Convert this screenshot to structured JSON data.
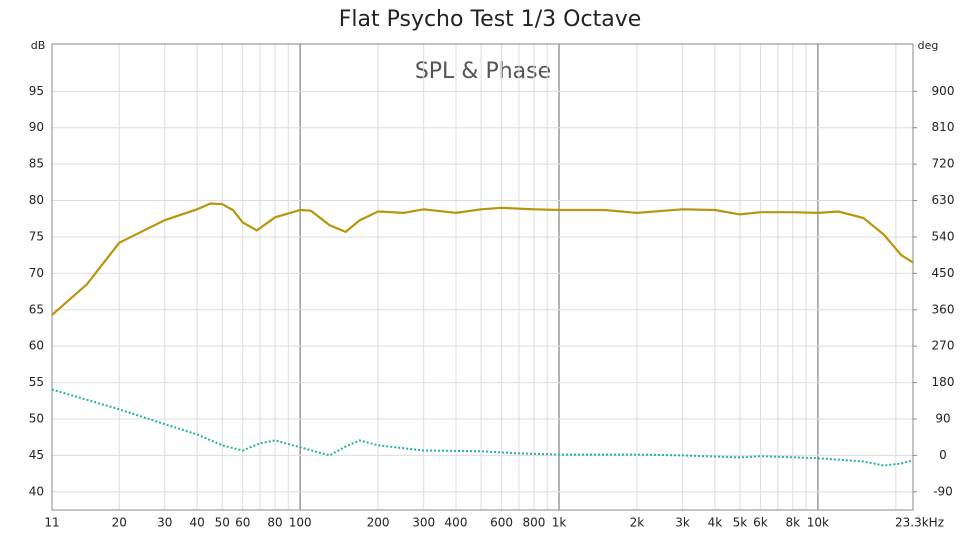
{
  "chart_data": {
    "type": "line",
    "title": "Flat Psycho Test 1/3 Octave",
    "subtitle": "SPL & Phase",
    "y_label": "dB",
    "y2_label": "deg",
    "xscale": "log",
    "grid": true,
    "xlim": [
      11,
      23300
    ],
    "ylim": [
      37.5,
      101.5
    ],
    "y2lim": [
      -135,
      1017
    ],
    "xticks": [
      11,
      20,
      30,
      40,
      50,
      60,
      80,
      100,
      200,
      300,
      400,
      600,
      800,
      {
        "value": 1000,
        "label": "1k"
      },
      {
        "value": 2000,
        "label": "2k"
      },
      {
        "value": 3000,
        "label": "3k"
      },
      {
        "value": 4000,
        "label": "4k"
      },
      {
        "value": 5000,
        "label": "5k"
      },
      {
        "value": 6000,
        "label": "6k"
      },
      {
        "value": 8000,
        "label": "8k"
      },
      {
        "value": 10000,
        "label": "10k"
      },
      {
        "value": 23300,
        "label": "23.3kHz"
      }
    ],
    "xminorticks": [
      70,
      90,
      500,
      700,
      900,
      7000,
      9000,
      20000
    ],
    "yticks": [
      40,
      45,
      50,
      55,
      60,
      65,
      70,
      75,
      80,
      85,
      90,
      95
    ],
    "y2ticks": [
      -90,
      0,
      90,
      180,
      270,
      360,
      450,
      540,
      630,
      720,
      810,
      900
    ],
    "series": [
      {
        "name": "SPL",
        "color": "#b8960c",
        "dashed": false,
        "x": [
          11,
          15,
          20,
          30,
          40,
          45,
          50,
          55,
          60,
          68,
          80,
          100,
          110,
          130,
          150,
          170,
          200,
          250,
          300,
          400,
          500,
          600,
          800,
          1000,
          1500,
          2000,
          3000,
          4000,
          5000,
          6000,
          8000,
          10000,
          12000,
          15000,
          18000,
          21000,
          23300
        ],
        "values": [
          64.3,
          68.5,
          74.2,
          77.3,
          78.8,
          79.6,
          79.5,
          78.7,
          77.0,
          75.9,
          77.7,
          78.7,
          78.6,
          76.6,
          75.7,
          77.3,
          78.5,
          78.3,
          78.8,
          78.3,
          78.8,
          79.0,
          78.8,
          78.7,
          78.7,
          78.3,
          78.8,
          78.7,
          78.1,
          78.4,
          78.4,
          78.3,
          78.5,
          77.6,
          75.3,
          72.5,
          71.5
        ]
      },
      {
        "name": "Phase",
        "color": "#22b3a0",
        "dashed": true,
        "axis": "y2",
        "x": [
          11,
          20,
          30,
          40,
          50,
          60,
          70,
          80,
          100,
          130,
          150,
          170,
          200,
          300,
          500,
          700,
          1000,
          2000,
          3000,
          5000,
          6000,
          10000,
          15000,
          18000,
          21000,
          23300
        ],
        "values": [
          163,
          114,
          77,
          52,
          25,
          12,
          30,
          37,
          20,
          0,
          22,
          37,
          25,
          12,
          10,
          5,
          2,
          2,
          0,
          -5,
          -2,
          -7,
          -15,
          -25,
          -20,
          -12
        ]
      }
    ]
  }
}
